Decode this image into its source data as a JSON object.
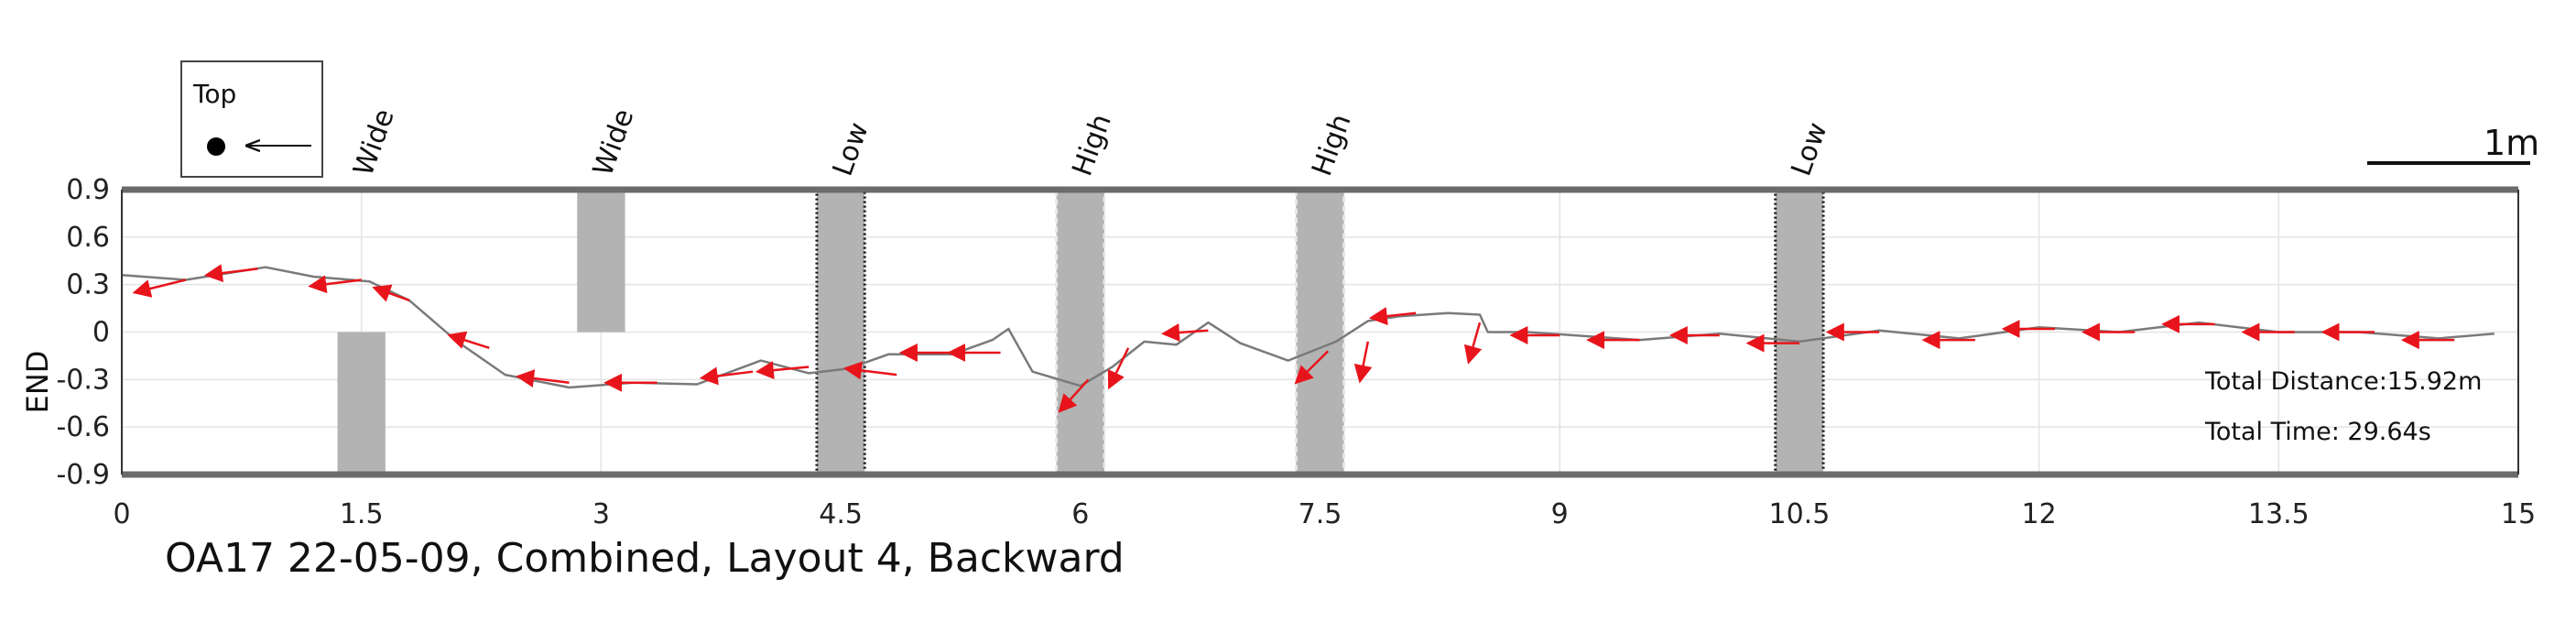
{
  "chart_data": {
    "type": "line",
    "title": "OA17 22-05-09, Combined, Layout 4, Backward",
    "xlabel": "",
    "ylabel": "END",
    "xlim": [
      0,
      15
    ],
    "ylim": [
      -0.9,
      0.9
    ],
    "xticks": [
      0,
      1.5,
      3,
      4.5,
      6,
      7.5,
      9,
      10.5,
      12,
      13.5,
      15
    ],
    "xtick_labels": [
      "0",
      "1.5",
      "3",
      "4.5",
      "6",
      "7.5",
      "9",
      "10.5",
      "12",
      "13.5",
      "15"
    ],
    "yticks": [
      0.9,
      0.6,
      0.3,
      0,
      -0.3,
      -0.6,
      -0.9
    ],
    "ytick_labels": [
      "0.9",
      "0.6",
      "0.3",
      "0",
      "-0.3",
      "-0.6",
      "-0.9"
    ],
    "grid": true,
    "line_color": "#7a7a7a",
    "arrow_color": "#e8141b",
    "obstacle_color": "#b3b3b3",
    "trajectory": {
      "x": [
        0,
        0.4,
        0.9,
        1.2,
        1.55,
        1.8,
        2.1,
        2.4,
        2.8,
        3.2,
        3.6,
        4.0,
        4.3,
        4.55,
        4.8,
        5.2,
        5.45,
        5.55,
        5.7,
        6.0,
        6.2,
        6.4,
        6.6,
        6.8,
        7.0,
        7.3,
        7.6,
        7.8,
        8.0,
        8.3,
        8.5,
        8.55,
        8.8,
        9.5,
        10.0,
        10.5,
        11.0,
        11.5,
        12.0,
        12.5,
        13.0,
        13.5,
        14.0,
        14.5,
        14.85
      ],
      "y": [
        0.36,
        0.33,
        0.41,
        0.35,
        0.32,
        0.2,
        -0.06,
        -0.27,
        -0.35,
        -0.32,
        -0.33,
        -0.18,
        -0.26,
        -0.23,
        -0.14,
        -0.14,
        -0.05,
        0.02,
        -0.25,
        -0.34,
        -0.22,
        -0.06,
        -0.08,
        0.06,
        -0.07,
        -0.18,
        -0.06,
        0.07,
        0.1,
        0.12,
        0.11,
        0.0,
        0.0,
        -0.05,
        -0.01,
        -0.06,
        0.01,
        -0.04,
        0.03,
        0.0,
        0.06,
        0.0,
        0.0,
        -0.04,
        -0.01
      ]
    },
    "arrows": [
      {
        "x": 0.4,
        "y": 0.33,
        "dx": -0.32,
        "dy": -0.08
      },
      {
        "x": 0.85,
        "y": 0.4,
        "dx": -0.32,
        "dy": -0.04
      },
      {
        "x": 1.5,
        "y": 0.33,
        "dx": -0.32,
        "dy": -0.04
      },
      {
        "x": 1.8,
        "y": 0.2,
        "dx": -0.22,
        "dy": 0.08
      },
      {
        "x": 2.3,
        "y": -0.1,
        "dx": -0.25,
        "dy": 0.08
      },
      {
        "x": 2.8,
        "y": -0.32,
        "dx": -0.32,
        "dy": 0.04
      },
      {
        "x": 3.35,
        "y": -0.32,
        "dx": -0.32,
        "dy": 0.0
      },
      {
        "x": 3.95,
        "y": -0.25,
        "dx": -0.32,
        "dy": -0.04
      },
      {
        "x": 4.3,
        "y": -0.22,
        "dx": -0.32,
        "dy": -0.03
      },
      {
        "x": 4.85,
        "y": -0.27,
        "dx": -0.32,
        "dy": 0.04
      },
      {
        "x": 5.2,
        "y": -0.13,
        "dx": -0.32,
        "dy": 0.0
      },
      {
        "x": 5.5,
        "y": -0.13,
        "dx": -0.32,
        "dy": 0.0
      },
      {
        "x": 6.05,
        "y": -0.3,
        "dx": -0.18,
        "dy": -0.2
      },
      {
        "x": 6.3,
        "y": -0.1,
        "dx": -0.12,
        "dy": -0.25
      },
      {
        "x": 6.8,
        "y": 0.01,
        "dx": -0.28,
        "dy": -0.02
      },
      {
        "x": 7.55,
        "y": -0.12,
        "dx": -0.2,
        "dy": -0.2
      },
      {
        "x": 7.8,
        "y": -0.06,
        "dx": -0.05,
        "dy": -0.25
      },
      {
        "x": 8.1,
        "y": 0.12,
        "dx": -0.28,
        "dy": -0.03
      },
      {
        "x": 8.5,
        "y": 0.06,
        "dx": -0.07,
        "dy": -0.25
      },
      {
        "x": 9.0,
        "y": -0.02,
        "dx": -0.3,
        "dy": 0.0
      },
      {
        "x": 9.5,
        "y": -0.05,
        "dx": -0.32,
        "dy": 0.0
      },
      {
        "x": 10.0,
        "y": -0.02,
        "dx": -0.3,
        "dy": 0.0
      },
      {
        "x": 10.5,
        "y": -0.07,
        "dx": -0.32,
        "dy": 0.0
      },
      {
        "x": 11.0,
        "y": 0.0,
        "dx": -0.32,
        "dy": 0.0
      },
      {
        "x": 11.6,
        "y": -0.05,
        "dx": -0.32,
        "dy": 0.0
      },
      {
        "x": 12.1,
        "y": 0.02,
        "dx": -0.32,
        "dy": 0.0
      },
      {
        "x": 12.6,
        "y": 0.0,
        "dx": -0.32,
        "dy": 0.0
      },
      {
        "x": 13.1,
        "y": 0.05,
        "dx": -0.32,
        "dy": 0.0
      },
      {
        "x": 13.6,
        "y": 0.0,
        "dx": -0.32,
        "dy": 0.0
      },
      {
        "x": 14.1,
        "y": 0.0,
        "dx": -0.32,
        "dy": 0.0
      },
      {
        "x": 14.6,
        "y": -0.05,
        "dx": -0.32,
        "dy": 0.0
      }
    ],
    "obstacles": [
      {
        "label": "Wide",
        "x0": 1.35,
        "x1": 1.65,
        "y0": -0.9,
        "y1": 0.0,
        "style": "plain"
      },
      {
        "label": "Wide",
        "x0": 2.85,
        "x1": 3.15,
        "y0": 0.0,
        "y1": 0.9,
        "style": "plain"
      },
      {
        "label": "Low",
        "x0": 4.35,
        "x1": 4.65,
        "y0": -0.9,
        "y1": 0.9,
        "style": "dotted-dark"
      },
      {
        "label": "High",
        "x0": 5.85,
        "x1": 6.15,
        "y0": -0.9,
        "y1": 0.9,
        "style": "dashed-light"
      },
      {
        "label": "High",
        "x0": 7.35,
        "x1": 7.65,
        "y0": -0.9,
        "y1": 0.9,
        "style": "dashed-light"
      },
      {
        "label": "Low",
        "x0": 10.35,
        "x1": 10.65,
        "y0": -0.9,
        "y1": 0.9,
        "style": "dotted-dark"
      }
    ],
    "annotations": {
      "total_distance": "Total Distance:15.92m",
      "total_time": "Total Time: 29.64s"
    },
    "legend": {
      "label": "Top"
    },
    "scale_bar": {
      "label": "1m"
    }
  }
}
